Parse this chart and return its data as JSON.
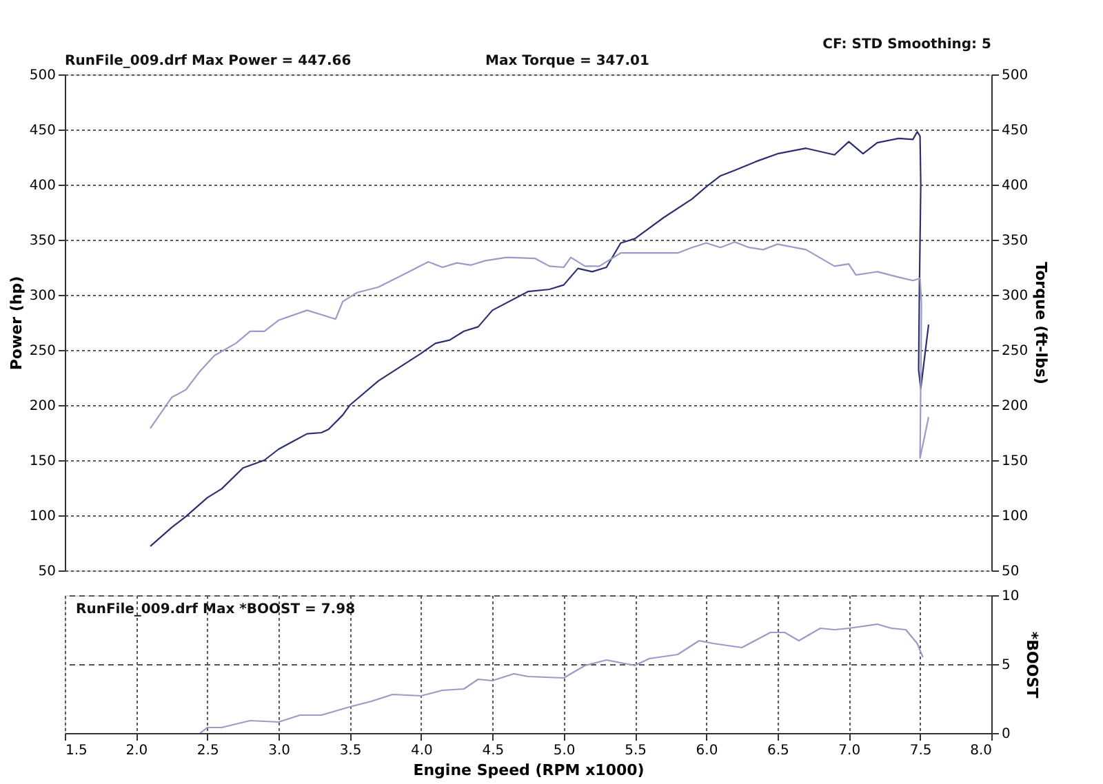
{
  "chart_data": [
    {
      "type": "line",
      "ylabel": "Power (hp)",
      "y2label": "Torque (ft-lbs)",
      "xlim": [
        1.5,
        8.0
      ],
      "xticks": [
        1.5,
        2.0,
        2.5,
        3.0,
        3.5,
        4.0,
        4.5,
        5.0,
        5.5,
        6.0,
        6.5,
        7.0,
        7.5,
        8.0
      ],
      "ylim": [
        50,
        500
      ],
      "yticks": [
        50,
        100,
        150,
        200,
        250,
        300,
        350,
        400,
        450,
        500
      ],
      "y2lim": [
        50,
        500
      ],
      "y2ticks": [
        50,
        100,
        150,
        200,
        250,
        300,
        350,
        400,
        450,
        500
      ],
      "tick_labels": "y",
      "grid": true,
      "line_style": "solid",
      "marker": "none",
      "annotations": [
        "RunFile_009.drf Max Power = 447.66",
        "Max Torque = 347.01",
        "CF: STD  Smoothing: 5"
      ],
      "series": [
        {
          "color": "#2b2f70",
          "x": [
            2.1,
            2.25,
            2.35,
            2.5,
            2.6,
            2.75,
            2.9,
            3.0,
            3.1,
            3.2,
            3.3,
            3.35,
            3.45,
            3.5,
            3.7,
            4.0,
            4.1,
            4.2,
            4.3,
            4.4,
            4.5,
            4.75,
            4.9,
            5.0,
            5.1,
            5.2,
            5.3,
            5.4,
            5.5,
            5.7,
            5.9,
            6.0,
            6.1,
            6.2,
            6.35,
            6.5,
            6.7,
            6.9,
            7.0,
            7.1,
            7.2,
            7.35,
            7.45,
            7.48,
            7.5,
            7.505,
            7.495,
            7.49,
            7.505,
            7.56
          ],
          "values": [
            72,
            89,
            99,
            116,
            124,
            143,
            150,
            160,
            167,
            174,
            175,
            178,
            191,
            200,
            222,
            247,
            256,
            259,
            267,
            271,
            286,
            303,
            305,
            309,
            324,
            321,
            325,
            347,
            351,
            370,
            387,
            398,
            408,
            413,
            421,
            428,
            433,
            427,
            439,
            428,
            438,
            442,
            441,
            448,
            444,
            400,
            300,
            232,
            215,
            273
          ]
        },
        {
          "color": "#9a9ac8",
          "axis": "y2",
          "x": [
            2.1,
            2.25,
            2.35,
            2.45,
            2.55,
            2.7,
            2.8,
            2.9,
            3.0,
            3.2,
            3.3,
            3.4,
            3.45,
            3.55,
            3.7,
            3.9,
            4.05,
            4.15,
            4.25,
            4.35,
            4.45,
            4.6,
            4.8,
            4.9,
            5.0,
            5.05,
            5.15,
            5.25,
            5.4,
            5.6,
            5.8,
            5.9,
            6.0,
            6.1,
            6.2,
            6.3,
            6.4,
            6.5,
            6.7,
            6.9,
            7.0,
            7.05,
            7.2,
            7.35,
            7.45,
            7.5,
            7.51,
            7.5,
            7.56
          ],
          "values": [
            179,
            207,
            214,
            231,
            245,
            256,
            267,
            267,
            277,
            286,
            282,
            278,
            294,
            302,
            307,
            320,
            330,
            325,
            329,
            327,
            331,
            334,
            333,
            326,
            325,
            334,
            326,
            326,
            338,
            338,
            338,
            343,
            347,
            343,
            348,
            343,
            341,
            346,
            341,
            326,
            328,
            318,
            321,
            316,
            313,
            315,
            292,
            152,
            189
          ]
        }
      ]
    },
    {
      "type": "line",
      "xlabel": "Engine Speed (RPM x1000)",
      "ylabel": "*BOOST",
      "xlim": [
        1.5,
        8.0
      ],
      "xticks": [
        1.5,
        {
          "value": 2,
          "label": "2.0"
        },
        2.5,
        {
          "value": 3,
          "label": "3.0"
        },
        3.5,
        {
          "value": 4,
          "label": "4.0"
        },
        4.5,
        {
          "value": 5,
          "label": "5.0"
        },
        5.5,
        {
          "value": 6,
          "label": "6.0"
        },
        6.5,
        {
          "value": 7,
          "label": "7.0"
        },
        7.5,
        {
          "value": 8,
          "label": "8.0"
        }
      ],
      "ylim": [
        0,
        10
      ],
      "yticks": [
        0,
        5,
        10
      ],
      "grid": true,
      "line_style": "solid",
      "marker": "none",
      "annotations": [
        "RunFile_009.drf Max *BOOST = 7.98"
      ],
      "series": [
        {
          "color": "#9a9ac8",
          "x": [
            2.45,
            2.5,
            2.6,
            2.8,
            3.0,
            3.15,
            3.3,
            3.5,
            3.65,
            3.8,
            4.0,
            4.15,
            4.3,
            4.4,
            4.5,
            4.65,
            4.75,
            5.0,
            5.15,
            5.3,
            5.5,
            5.6,
            5.8,
            5.95,
            6.05,
            6.25,
            6.45,
            6.55,
            6.65,
            6.8,
            6.9,
            7.0,
            7.2,
            7.3,
            7.4,
            7.48,
            7.52
          ],
          "values": [
            0,
            0.4,
            0.4,
            0.9,
            0.8,
            1.3,
            1.3,
            1.9,
            2.3,
            2.8,
            2.7,
            3.1,
            3.2,
            3.9,
            3.8,
            4.3,
            4.1,
            4.0,
            4.9,
            5.3,
            4.9,
            5.4,
            5.7,
            6.7,
            6.5,
            6.2,
            7.3,
            7.3,
            6.7,
            7.6,
            7.5,
            7.6,
            7.9,
            7.6,
            7.5,
            6.5,
            5.5
          ]
        }
      ]
    }
  ]
}
